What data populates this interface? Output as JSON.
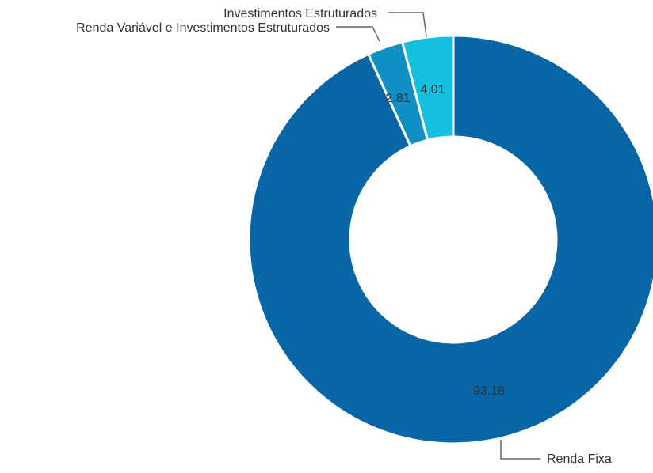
{
  "chart_data": {
    "type": "pie",
    "variant": "donut",
    "categories": [
      "Renda Fixa",
      "Renda Variável e Investimentos Estruturados",
      "Investimentos Estruturados"
    ],
    "values": [
      93.18,
      2.81,
      4.01
    ],
    "value_labels": [
      "93.18",
      "2.81",
      "4.01"
    ],
    "colors": [
      "#0866a6",
      "#0f8fc4",
      "#14bfe0"
    ],
    "title": "",
    "legend": "none",
    "start_angle_deg": 0,
    "direction": "clockwise",
    "slice_order": [
      0,
      1,
      2
    ]
  }
}
